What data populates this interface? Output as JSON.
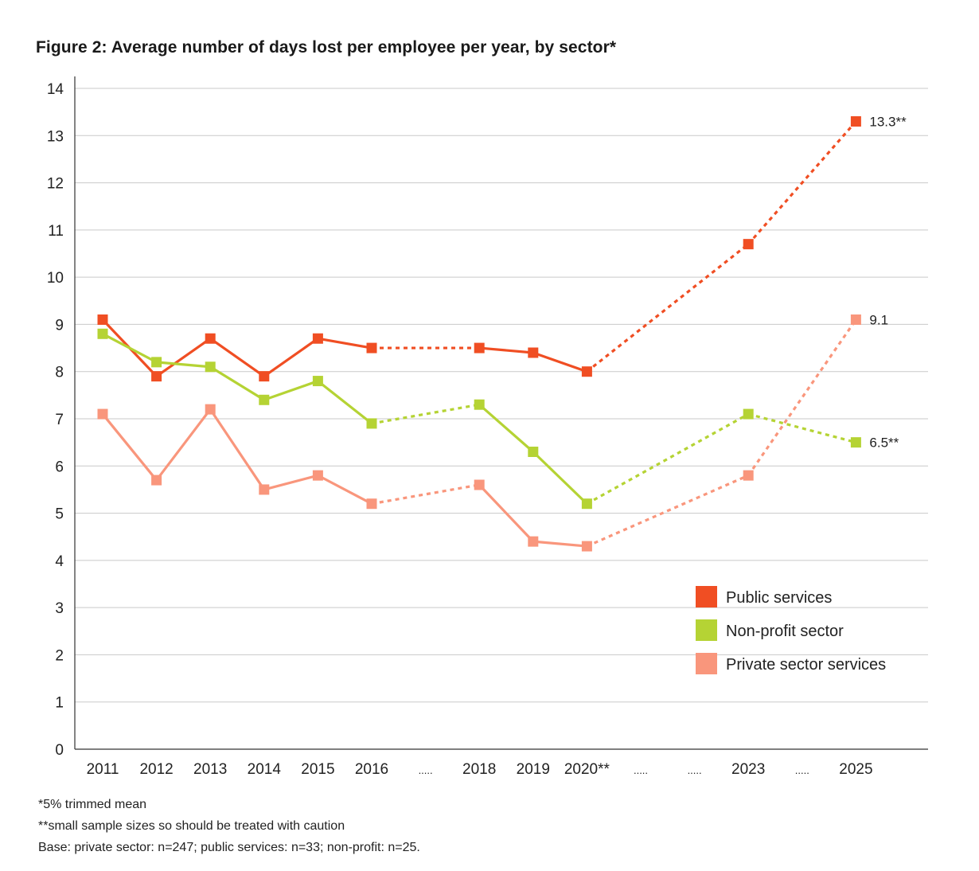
{
  "title": "Figure 2: Average number of days lost per employee per year, by sector*",
  "notes": [
    "*5% trimmed mean",
    "**small sample sizes so should be treated with caution",
    "Base: private sector: n=247; public services: n=33; non-profit: n=25."
  ],
  "chart_data": {
    "type": "line",
    "title": "Figure 2: Average number of days lost per employee per year, by sector*",
    "xlabel": "",
    "ylabel": "",
    "ylim": [
      0,
      14
    ],
    "yticks": [
      0,
      1,
      2,
      3,
      4,
      5,
      6,
      7,
      8,
      9,
      10,
      11,
      12,
      13,
      14
    ],
    "grid": true,
    "legend": "bottom-right",
    "categories": [
      "2011",
      "2012",
      "2013",
      "2014",
      "2015",
      "2016",
      ".....",
      "2018",
      "2019",
      "2020**",
      ".....",
      ".....",
      "2023",
      ".....",
      "2025"
    ],
    "series": [
      {
        "name": "Public services",
        "color": "#f04e23",
        "points": [
          {
            "x": "2011",
            "y": 9.1
          },
          {
            "x": "2012",
            "y": 7.9
          },
          {
            "x": "2013",
            "y": 8.7
          },
          {
            "x": "2014",
            "y": 7.9
          },
          {
            "x": "2015",
            "y": 8.7
          },
          {
            "x": "2016",
            "y": 8.5
          },
          {
            "x": "2018",
            "y": 8.5
          },
          {
            "x": "2019",
            "y": 8.4
          },
          {
            "x": "2020**",
            "y": 8.0
          },
          {
            "x": "2023",
            "y": 10.7
          },
          {
            "x": "2025",
            "y": 13.3
          }
        ],
        "end_label": "13.3**"
      },
      {
        "name": "Non-profit sector",
        "color": "#b5d334",
        "points": [
          {
            "x": "2011",
            "y": 8.8
          },
          {
            "x": "2012",
            "y": 8.2
          },
          {
            "x": "2013",
            "y": 8.1
          },
          {
            "x": "2014",
            "y": 7.4
          },
          {
            "x": "2015",
            "y": 7.8
          },
          {
            "x": "2016",
            "y": 6.9
          },
          {
            "x": "2018",
            "y": 7.3
          },
          {
            "x": "2019",
            "y": 6.3
          },
          {
            "x": "2020**",
            "y": 5.2
          },
          {
            "x": "2023",
            "y": 7.1
          },
          {
            "x": "2025",
            "y": 6.5
          }
        ],
        "end_label": "6.5**"
      },
      {
        "name": "Private sector services",
        "color": "#f9967c",
        "points": [
          {
            "x": "2011",
            "y": 7.1
          },
          {
            "x": "2012",
            "y": 5.7
          },
          {
            "x": "2013",
            "y": 7.2
          },
          {
            "x": "2014",
            "y": 5.5
          },
          {
            "x": "2015",
            "y": 5.8
          },
          {
            "x": "2016",
            "y": 5.2
          },
          {
            "x": "2018",
            "y": 5.6
          },
          {
            "x": "2019",
            "y": 4.4
          },
          {
            "x": "2020**",
            "y": 4.3
          },
          {
            "x": "2023",
            "y": 5.8
          },
          {
            "x": "2025",
            "y": 9.1
          }
        ],
        "end_label": "9.1"
      }
    ],
    "dashed_segments": [
      {
        "from": "2016",
        "to": "2018"
      },
      {
        "from": "2020**",
        "to": "2023"
      },
      {
        "from": "2023",
        "to": "2025"
      }
    ]
  }
}
